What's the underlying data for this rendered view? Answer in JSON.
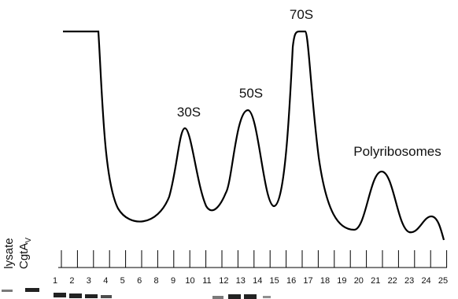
{
  "peaks": {
    "p30S": "30S",
    "p50S": "50S",
    "p70S": "70S",
    "polyribosomes": "Polyribosomes"
  },
  "lanes": {
    "lysate": "lysate",
    "protein": {
      "text": "CgtA",
      "subscript": "V"
    }
  },
  "fractions": [
    1,
    2,
    3,
    4,
    5,
    6,
    8,
    9,
    10,
    11,
    12,
    13,
    14,
    15,
    16,
    17,
    18,
    19,
    20,
    21,
    22,
    23,
    24,
    25
  ]
}
